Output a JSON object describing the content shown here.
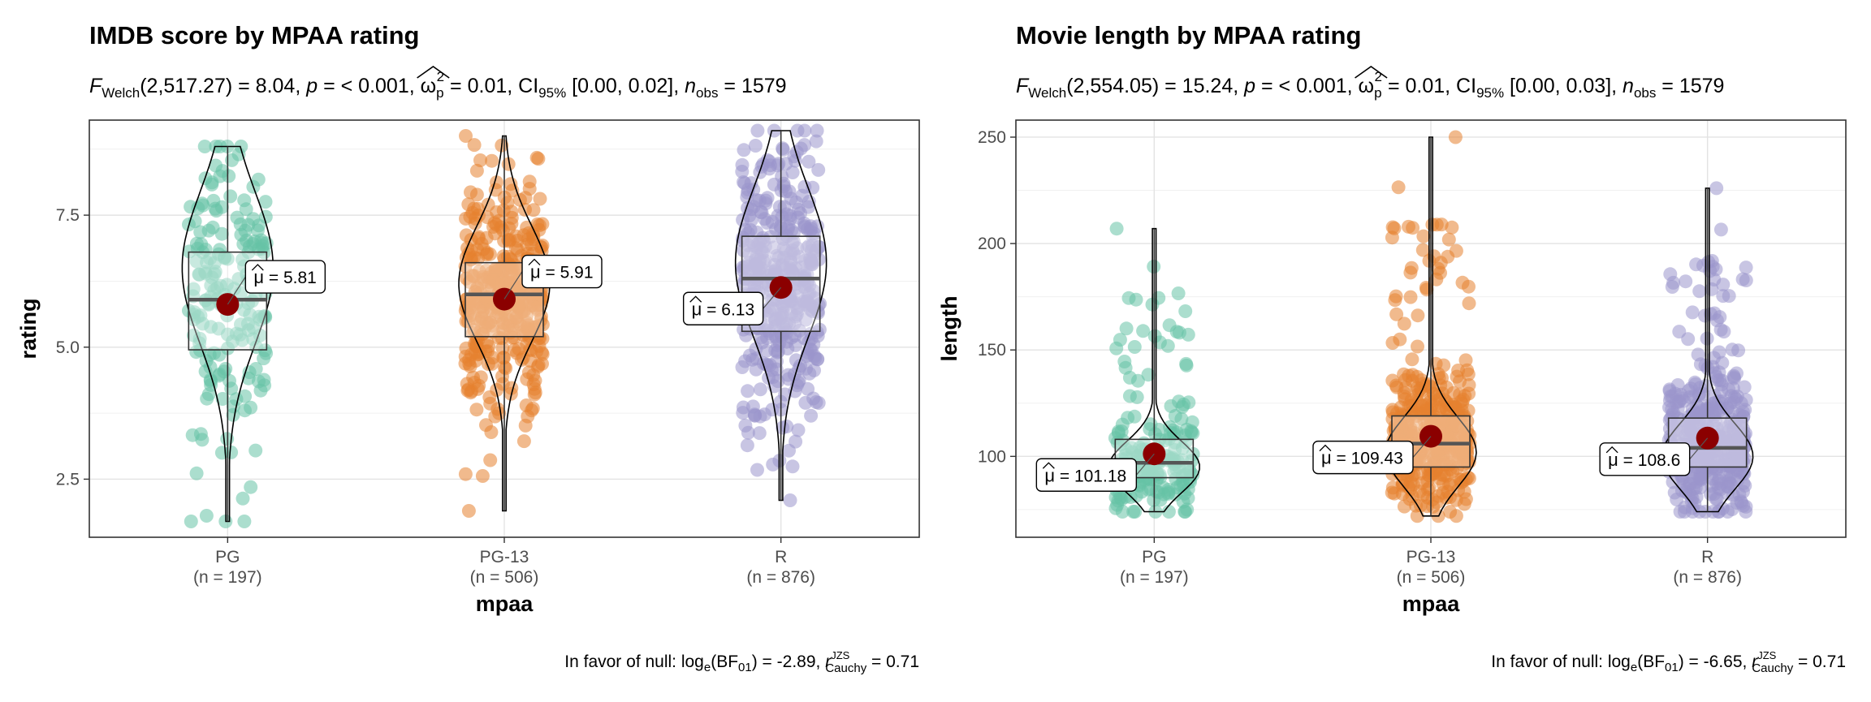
{
  "chart_data": [
    {
      "type": "violin-box-scatter",
      "title": "IMDB score by MPAA rating",
      "subtitle": {
        "stat_sub": "Welch",
        "stat_value": "(2,517.27) = 8.04, ",
        "p_part": " = < 0.001, ",
        "omega_part": " = 0.01, CI",
        "ci_sub": "95%",
        "ci_part": " [0.00, 0.02], ",
        "n_sub": "obs",
        "n_part": " = 1579"
      },
      "xlabel": "mpaa",
      "ylabel": "rating",
      "ylim": [
        1.4,
        9.3
      ],
      "yticks": [
        2.5,
        5.0,
        7.5
      ],
      "ytick_labels": [
        "2.5",
        "5.0",
        "7.5"
      ],
      "grid": true,
      "categories": [
        "PG",
        "PG-13",
        "R"
      ],
      "counts": [
        "(n = 197)",
        "(n = 506)",
        "(n = 876)"
      ],
      "colors": [
        "#66c2a5",
        "#e6812f",
        "#9a96cc"
      ],
      "groups": [
        {
          "name": "PG",
          "n": 197,
          "mean": 5.81,
          "mean_label": "5.81",
          "min": 1.7,
          "q1": 4.95,
          "median": 5.9,
          "q3": 6.8,
          "max": 8.8,
          "density_peak": 6.5
        },
        {
          "name": "PG-13",
          "n": 506,
          "mean": 5.91,
          "mean_label": "5.91",
          "min": 1.9,
          "q1": 5.2,
          "median": 6.0,
          "q3": 6.6,
          "max": 9.0,
          "density_peak": 6.2
        },
        {
          "name": "R",
          "n": 876,
          "mean": 6.13,
          "mean_label": "6.13",
          "min": 2.1,
          "q1": 5.3,
          "median": 6.3,
          "q3": 7.1,
          "max": 9.1,
          "density_peak": 6.6
        }
      ],
      "mean_label_side": [
        "right",
        "right",
        "left"
      ],
      "caption": {
        "prefix": "In favor of null: log",
        "e_sub": "e",
        "bf": "(BF",
        "bf_sub": "01",
        "value": ") = -2.89, ",
        "r": "r",
        "r_sup": "JZS",
        "r_sub": "Cauchy",
        "r_value": " = 0.71"
      }
    },
    {
      "type": "violin-box-scatter",
      "title": "Movie length by MPAA rating",
      "subtitle": {
        "stat_sub": "Welch",
        "stat_value": "(2,554.05) = 15.24, ",
        "p_part": " = < 0.001, ",
        "omega_part": " = 0.01, CI",
        "ci_sub": "95%",
        "ci_part": " [0.00, 0.03], ",
        "n_sub": "obs",
        "n_part": " = 1579"
      },
      "xlabel": "mpaa",
      "ylabel": "length",
      "ylim": [
        62,
        258
      ],
      "yticks": [
        100,
        150,
        200,
        250
      ],
      "ytick_labels": [
        "100",
        "150",
        "200",
        "250"
      ],
      "grid": true,
      "categories": [
        "PG",
        "PG-13",
        "R"
      ],
      "counts": [
        "(n = 197)",
        "(n = 506)",
        "(n = 876)"
      ],
      "colors": [
        "#66c2a5",
        "#e6812f",
        "#9a96cc"
      ],
      "groups": [
        {
          "name": "PG",
          "n": 197,
          "mean": 101.18,
          "mean_label": "101.18",
          "min": 74,
          "q1": 90,
          "median": 97,
          "q3": 108,
          "max": 207,
          "density_peak": 95
        },
        {
          "name": "PG-13",
          "n": 506,
          "mean": 109.43,
          "mean_label": "109.43",
          "min": 72,
          "q1": 95,
          "median": 106,
          "q3": 119,
          "max": 250,
          "density_peak": 102
        },
        {
          "name": "R",
          "n": 876,
          "mean": 108.6,
          "mean_label": "108.6",
          "min": 74,
          "q1": 95,
          "median": 104,
          "q3": 118,
          "max": 226,
          "density_peak": 100
        }
      ],
      "mean_label_side": [
        "left",
        "left",
        "left"
      ],
      "caption": {
        "prefix": "In favor of null: log",
        "e_sub": "e",
        "bf": "(BF",
        "bf_sub": "01",
        "value": ") = -6.65, ",
        "r": "r",
        "r_sup": "JZS",
        "r_sub": "Cauchy",
        "r_value": " = 0.71"
      }
    }
  ]
}
